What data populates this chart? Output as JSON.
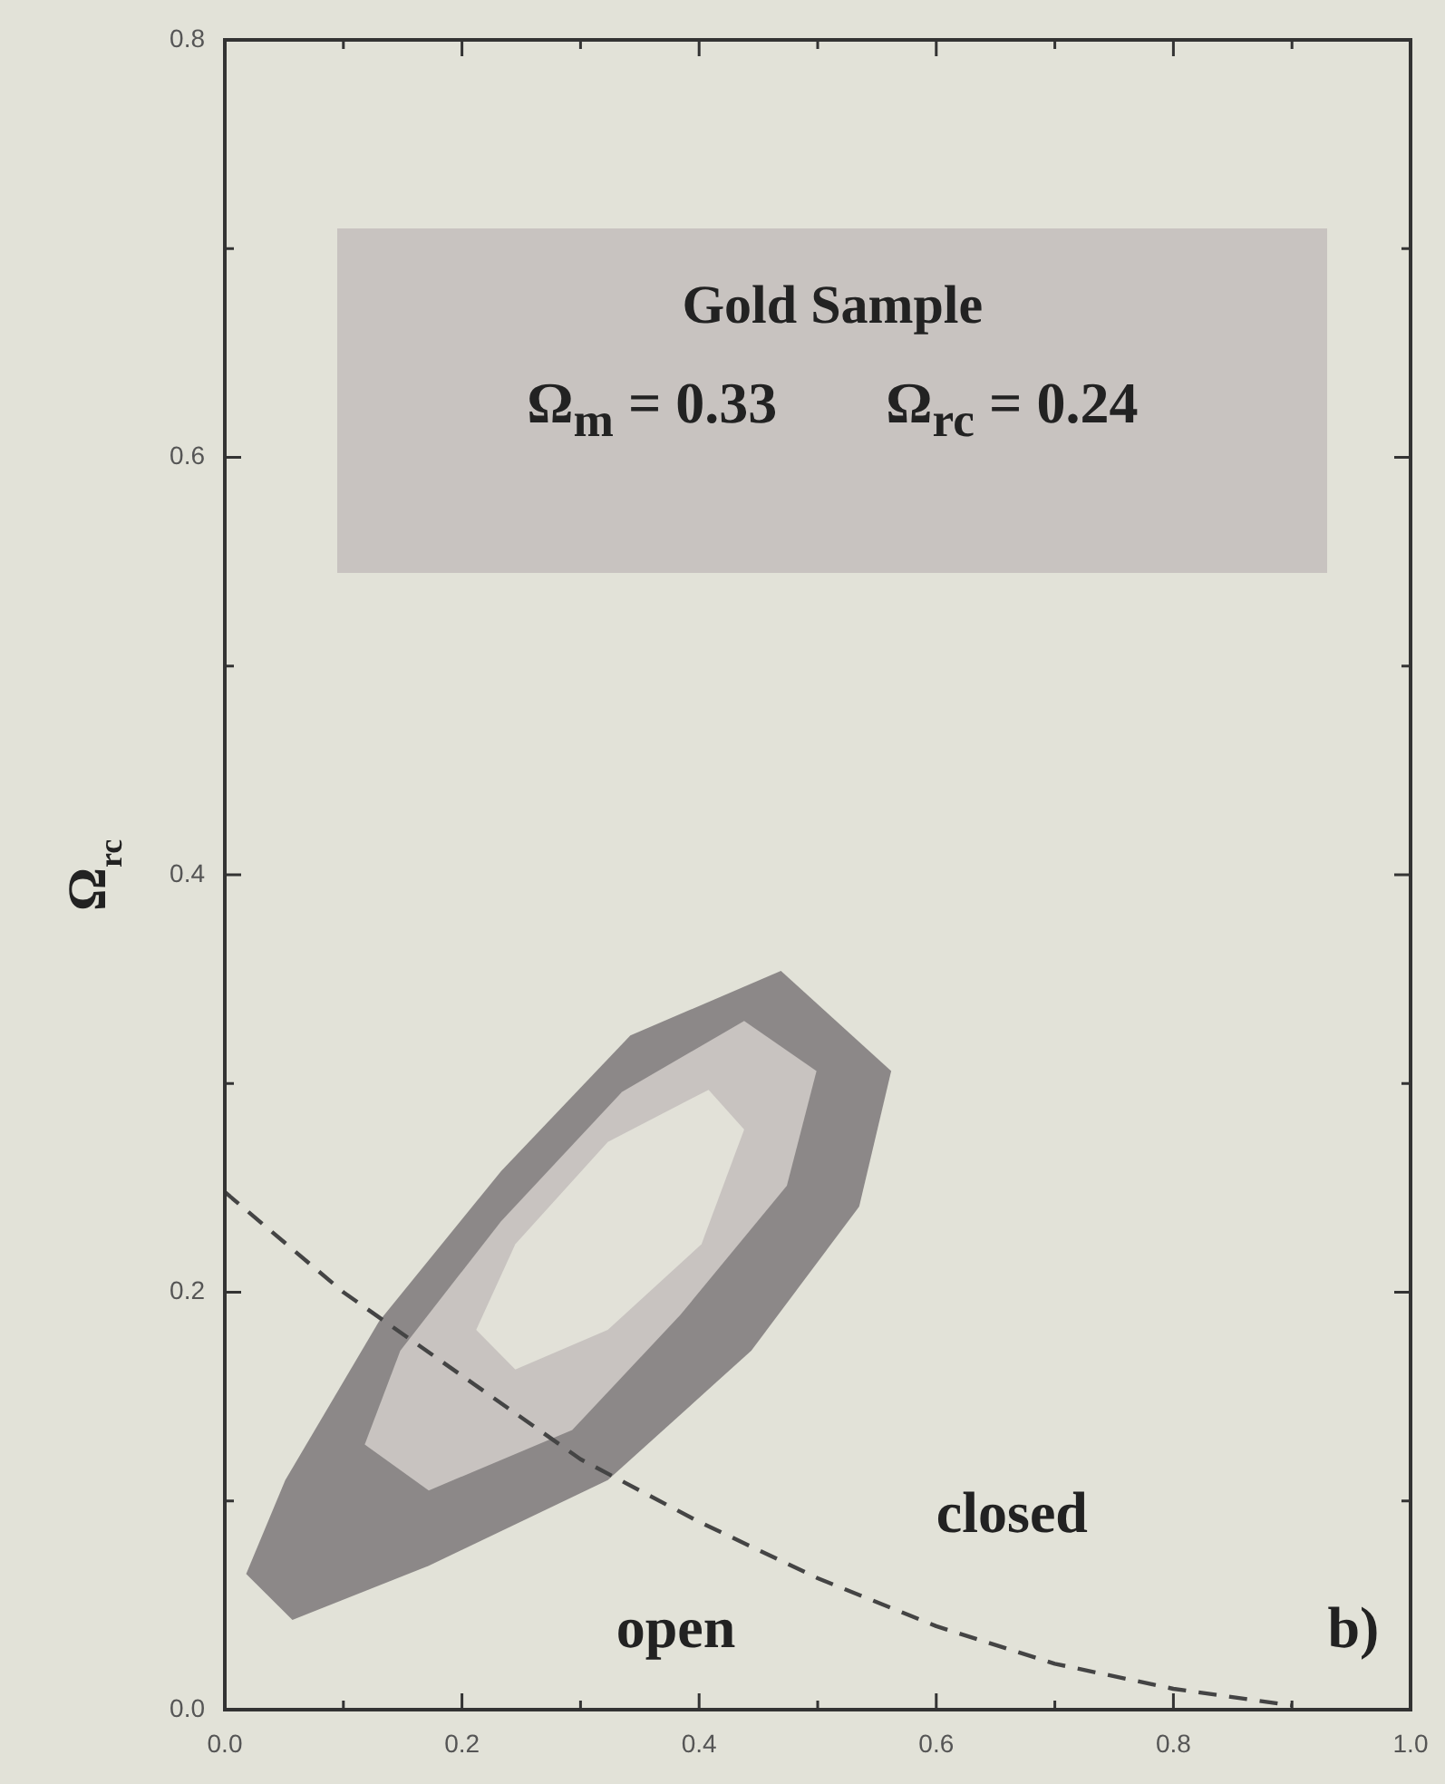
{
  "chart_data": {
    "type": "line",
    "xlim": [
      0,
      1
    ],
    "ylim": [
      0,
      0.8
    ],
    "xticks": [
      {
        "value": 0,
        "label": "0.0"
      },
      {
        "value": 0.1,
        "label": null
      },
      0.2,
      {
        "value": 0.3,
        "label": null
      },
      0.4,
      {
        "value": 0.5,
        "label": null
      },
      0.6,
      {
        "value": 0.7,
        "label": null
      },
      0.8,
      {
        "value": 0.9,
        "label": null
      },
      {
        "value": 1,
        "label": "1.0"
      }
    ],
    "yticks": [
      {
        "value": 0,
        "label": "0.0"
      },
      {
        "value": 0.1,
        "label": null
      },
      0.2,
      {
        "value": 0.3,
        "label": null
      },
      0.4,
      {
        "value": 0.5,
        "label": null
      },
      0.6,
      {
        "value": 0.7,
        "label": null
      },
      0.8
    ],
    "ylabel": "Ω$_{rc}$",
    "grid": false,
    "legend": false,
    "marker": "none",
    "annotations": [
      "Gold Sample",
      "Ω$_{m}$ = 0.33",
      "Ω$_{rc}$ = 0.24",
      "open",
      "closed",
      "b)"
    ],
    "series": [
      {
        "type": "area",
        "color": "#8c8888",
        "x": [
          0.469,
          0.562,
          0.535,
          0.444,
          0.323,
          0.172,
          0.057,
          0.018,
          0.051,
          0.13,
          0.233,
          0.342,
          0.469
        ],
        "values": [
          0.354,
          0.306,
          0.241,
          0.172,
          0.11,
          0.069,
          0.043,
          0.065,
          0.11,
          0.186,
          0.258,
          0.323,
          0.354
        ]
      },
      {
        "type": "area",
        "color": "#c8c3c0",
        "x": [
          0.438,
          0.499,
          0.474,
          0.384,
          0.293,
          0.172,
          0.118,
          0.148,
          0.233,
          0.335,
          0.438
        ],
        "values": [
          0.33,
          0.306,
          0.251,
          0.189,
          0.134,
          0.105,
          0.127,
          0.172,
          0.234,
          0.296,
          0.33
        ]
      },
      {
        "type": "area",
        "color": "#e2e1d8",
        "x": [
          0.408,
          0.438,
          0.402,
          0.323,
          0.245,
          0.212,
          0.245,
          0.323,
          0.408
        ],
        "values": [
          0.297,
          0.278,
          0.223,
          0.182,
          0.163,
          0.182,
          0.223,
          0.272,
          0.297
        ]
      },
      {
        "type": "line",
        "color": "#444444",
        "line_style": "dashed",
        "x": [
          0,
          0.1,
          0.2,
          0.3,
          0.4,
          0.5,
          0.6,
          0.7,
          0.8,
          0.9
        ],
        "values": [
          0.248,
          0.2,
          0.16,
          0.12,
          0.09,
          0.063,
          0.04,
          0.022,
          0.01,
          0.002
        ]
      }
    ]
  }
}
